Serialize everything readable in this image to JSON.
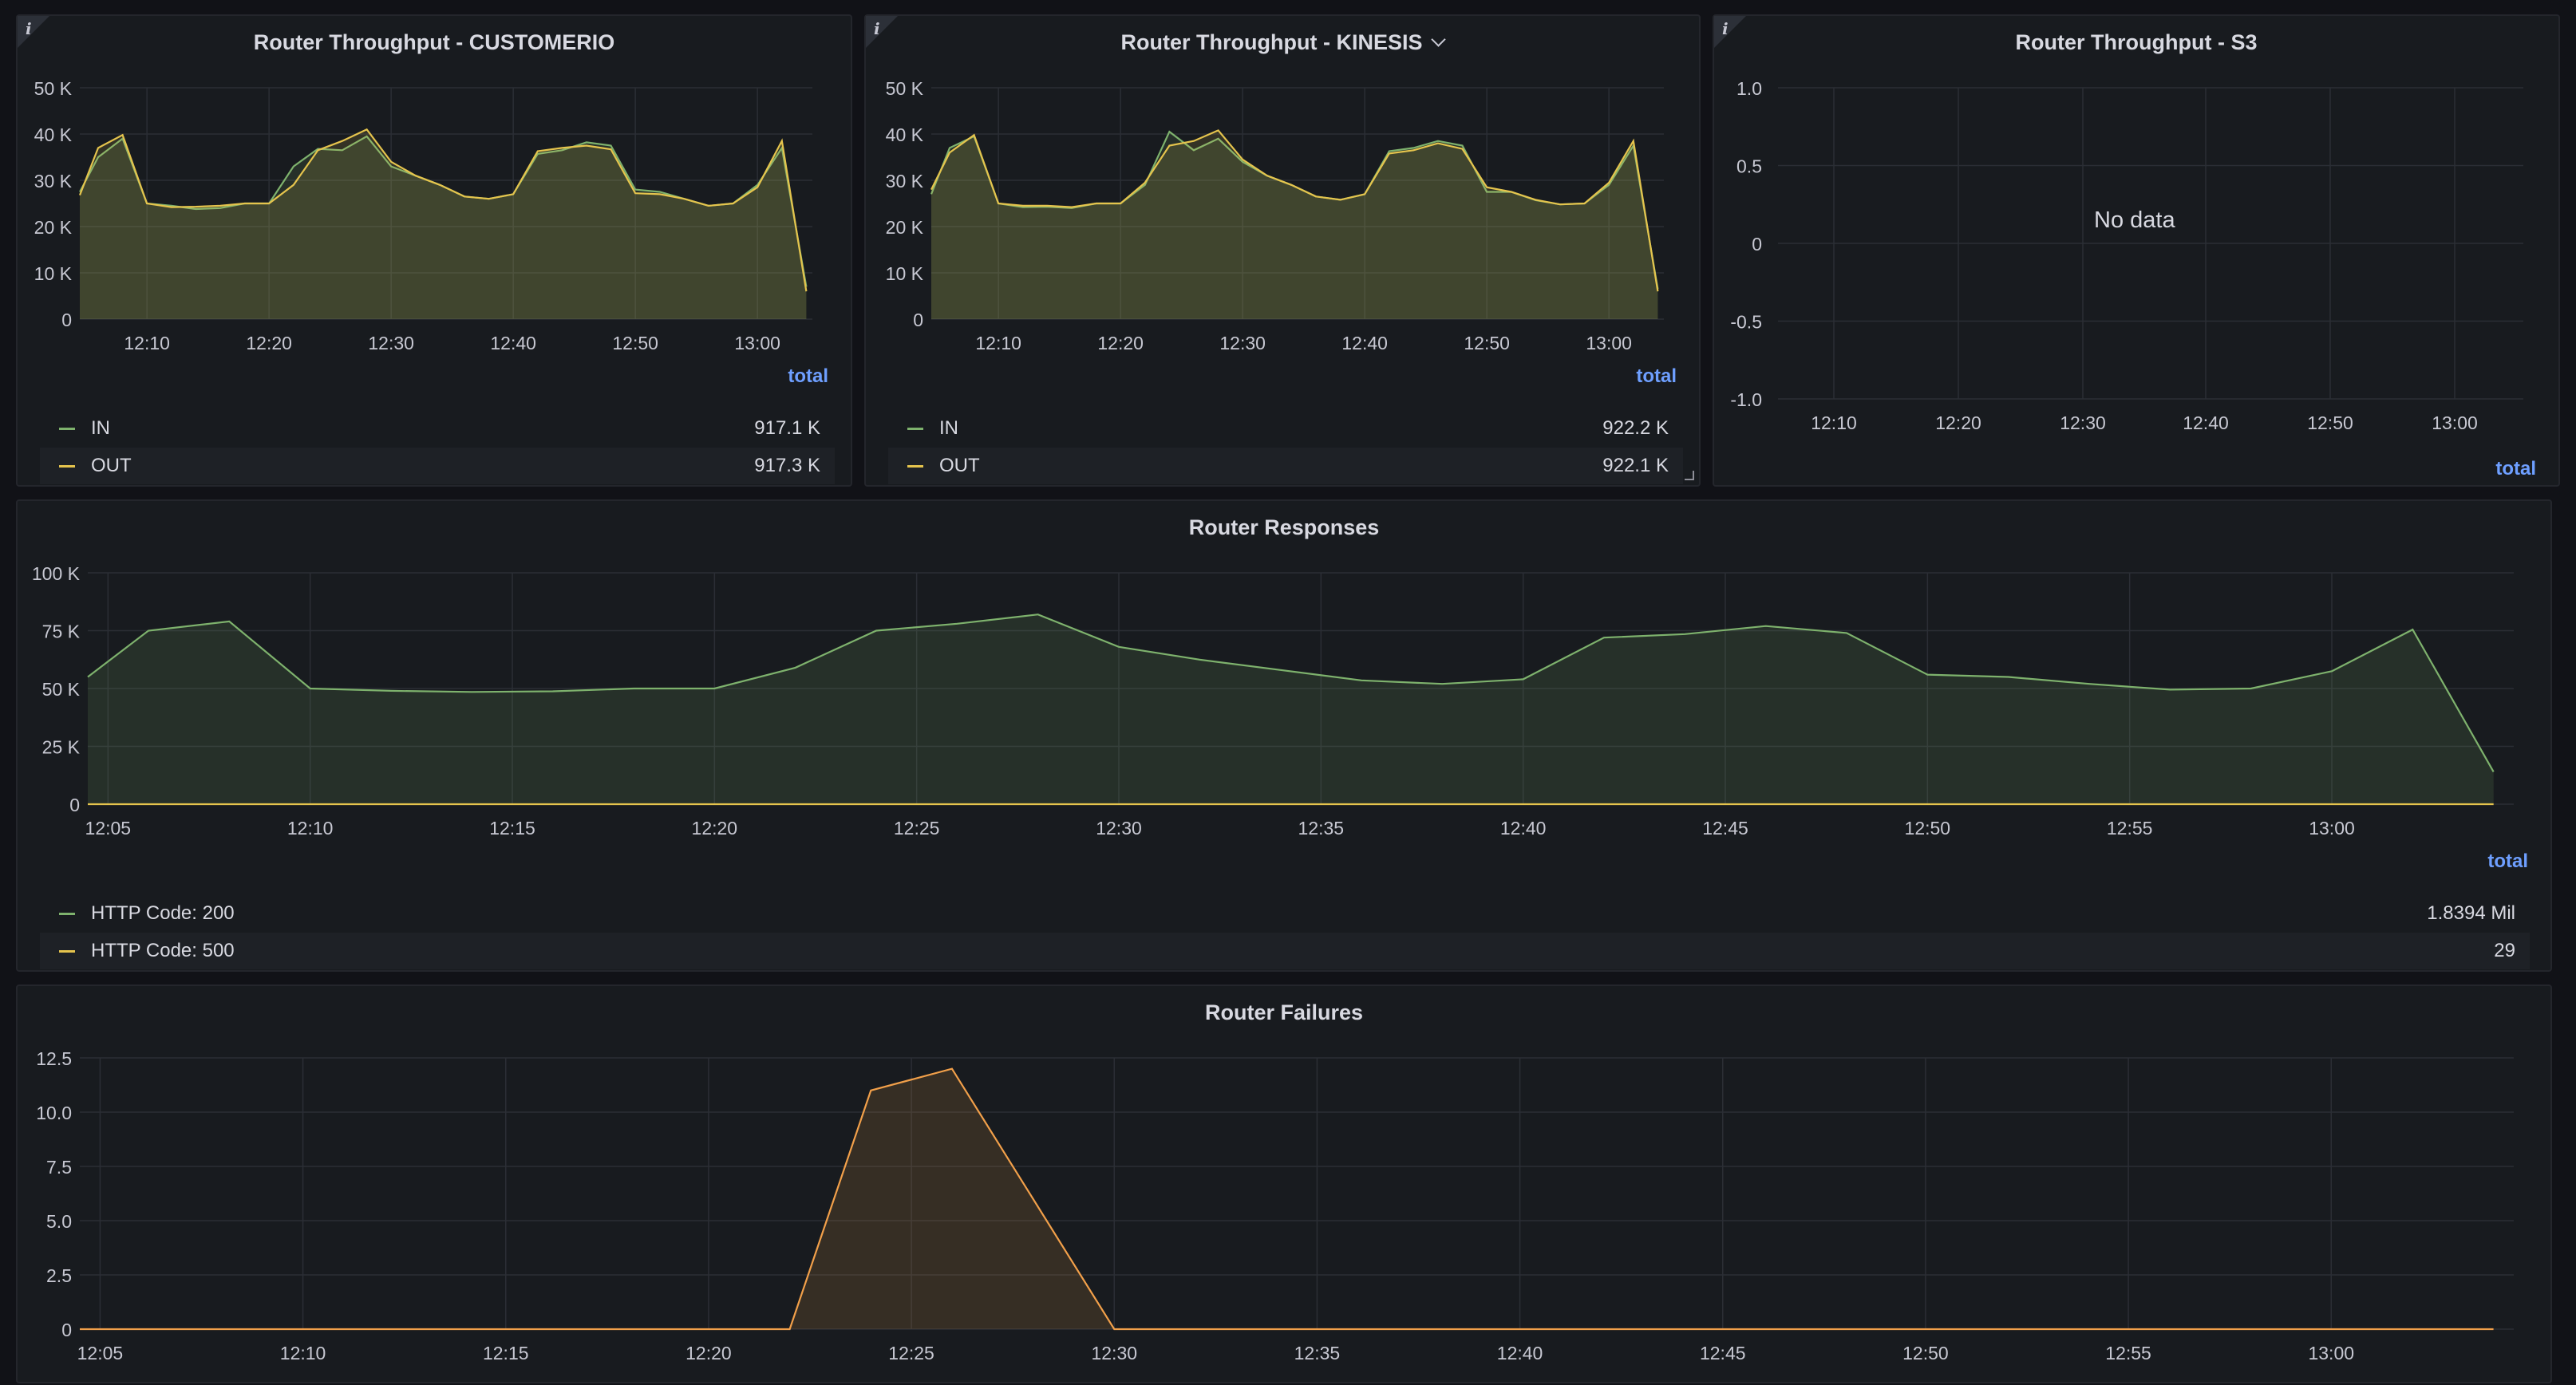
{
  "colors": {
    "green": "#7eb26d",
    "yellow": "#e5c44d",
    "orange": "#f2a04a",
    "grid": "#2b2e35",
    "axis_text": "#c7c8d2",
    "legend_total": "#6e9fff"
  },
  "icons": {
    "info": "info-icon",
    "chevron": "chevron-down-icon",
    "resize": "resize-handle-icon"
  },
  "panels": {
    "customerio": {
      "title": "Router Throughput - CUSTOMERIO",
      "info_glyph": "i",
      "legend_header": "total",
      "legend": [
        {
          "name": "IN",
          "total": "917.1 K"
        },
        {
          "name": "OUT",
          "total": "917.3 K"
        }
      ]
    },
    "kinesis": {
      "title": "Router Throughput - KINESIS",
      "info_glyph": "i",
      "legend_header": "total",
      "legend": [
        {
          "name": "IN",
          "total": "922.2 K"
        },
        {
          "name": "OUT",
          "total": "922.1 K"
        }
      ]
    },
    "s3": {
      "title": "Router Throughput - S3",
      "info_glyph": "i",
      "no_data": "No data",
      "legend_header": "total"
    },
    "responses": {
      "title": "Router Responses",
      "legend_header": "total",
      "legend": [
        {
          "name": "HTTP Code: 200",
          "total": "1.8394 Mil"
        },
        {
          "name": "HTTP Code: 500",
          "total": "29"
        }
      ]
    },
    "failures": {
      "title": "Router Failures"
    }
  },
  "chart_data": [
    {
      "id": "customerio",
      "type": "area",
      "title": "Router Throughput - CUSTOMERIO",
      "x_unit": "minutes",
      "xlim": [
        "12:04:30",
        "13:04:30"
      ],
      "x_ticks": [
        "12:10",
        "12:20",
        "12:30",
        "12:40",
        "12:50",
        "13:00"
      ],
      "y_ticks": [
        "0",
        "10 K",
        "20 K",
        "30 K",
        "40 K",
        "50 K"
      ],
      "ylim": [
        0,
        50000
      ],
      "grid": true,
      "legend": "bottom",
      "x": [
        "12:04:30",
        "12:06",
        "12:08",
        "12:10",
        "12:12",
        "12:14",
        "12:16",
        "12:18",
        "12:20",
        "12:22",
        "12:24",
        "12:26",
        "12:28",
        "12:30",
        "12:32",
        "12:34",
        "12:36",
        "12:38",
        "12:40",
        "12:42",
        "12:44",
        "12:46",
        "12:48",
        "12:50",
        "12:52",
        "12:54",
        "12:56",
        "12:58",
        "13:00",
        "13:02",
        "13:04"
      ],
      "series": [
        {
          "name": "IN",
          "color": "#7eb26d",
          "values": [
            27500,
            35000,
            39000,
            25000,
            24500,
            23800,
            24000,
            25000,
            25000,
            33000,
            36800,
            36500,
            39500,
            33000,
            31000,
            29000,
            26500,
            26000,
            27000,
            35700,
            36500,
            38200,
            37500,
            28000,
            27500,
            26000,
            24500,
            25000,
            29000,
            37000,
            7000
          ]
        },
        {
          "name": "OUT",
          "color": "#e5c44d",
          "values": [
            26800,
            37000,
            39800,
            25000,
            24200,
            24300,
            24500,
            25000,
            25000,
            29000,
            36500,
            38500,
            41000,
            34000,
            31000,
            29000,
            26500,
            26000,
            27000,
            36300,
            37000,
            37500,
            36700,
            27200,
            27000,
            26000,
            24500,
            25000,
            28500,
            38500,
            6000
          ]
        }
      ]
    },
    {
      "id": "kinesis",
      "type": "area",
      "title": "Router Throughput - KINESIS",
      "x_unit": "minutes",
      "xlim": [
        "12:04:30",
        "13:04:30"
      ],
      "x_ticks": [
        "12:10",
        "12:20",
        "12:30",
        "12:40",
        "12:50",
        "13:00"
      ],
      "y_ticks": [
        "0",
        "10 K",
        "20 K",
        "30 K",
        "40 K",
        "50 K"
      ],
      "ylim": [
        0,
        50000
      ],
      "grid": true,
      "legend": "bottom",
      "x": [
        "12:04:30",
        "12:06",
        "12:08",
        "12:10",
        "12:12",
        "12:14",
        "12:16",
        "12:18",
        "12:20",
        "12:22",
        "12:24",
        "12:26",
        "12:28",
        "12:30",
        "12:32",
        "12:34",
        "12:36",
        "12:38",
        "12:40",
        "12:42",
        "12:44",
        "12:46",
        "12:48",
        "12:50",
        "12:52",
        "12:54",
        "12:56",
        "12:58",
        "13:00",
        "13:02",
        "13:04"
      ],
      "series": [
        {
          "name": "IN",
          "color": "#7eb26d",
          "values": [
            27000,
            37000,
            39500,
            25000,
            24200,
            24300,
            24000,
            25000,
            25000,
            29000,
            40500,
            36500,
            39000,
            34000,
            31000,
            29000,
            26500,
            25800,
            27000,
            36300,
            37000,
            38500,
            37500,
            27500,
            27500,
            25700,
            24800,
            25000,
            29000,
            37500,
            6500
          ]
        },
        {
          "name": "OUT",
          "color": "#e5c44d",
          "values": [
            28000,
            36000,
            39800,
            25000,
            24500,
            24500,
            24200,
            25000,
            25000,
            29500,
            37500,
            38500,
            40800,
            34500,
            31000,
            29000,
            26500,
            25800,
            27000,
            35800,
            36500,
            38000,
            36800,
            28500,
            27500,
            25800,
            24800,
            25000,
            29500,
            38500,
            6000
          ]
        }
      ]
    },
    {
      "id": "s3",
      "type": "line",
      "title": "Router Throughput - S3",
      "x_ticks": [
        "12:10",
        "12:20",
        "12:30",
        "12:40",
        "12:50",
        "13:00"
      ],
      "y_ticks": [
        "-1.0",
        "-0.5",
        "0",
        "0.5",
        "1.0"
      ],
      "ylim": [
        -1,
        1
      ],
      "grid": true,
      "series": []
    },
    {
      "id": "responses",
      "type": "area",
      "title": "Router Responses",
      "x_unit": "minutes",
      "xlim": [
        "12:04:30",
        "13:04:30"
      ],
      "x_ticks": [
        "12:05",
        "12:10",
        "12:15",
        "12:20",
        "12:25",
        "12:30",
        "12:35",
        "12:40",
        "12:45",
        "12:50",
        "12:55",
        "13:00"
      ],
      "y_ticks": [
        "0",
        "25 K",
        "50 K",
        "75 K",
        "100 K"
      ],
      "ylim": [
        0,
        100000
      ],
      "grid": true,
      "legend": "bottom",
      "x": [
        "12:04:30",
        "12:06",
        "12:08",
        "12:10",
        "12:12",
        "12:14",
        "12:16",
        "12:18",
        "12:20",
        "12:22",
        "12:24",
        "12:26",
        "12:28",
        "12:30",
        "12:32",
        "12:34",
        "12:36",
        "12:38",
        "12:40",
        "12:42",
        "12:44",
        "12:46",
        "12:48",
        "12:50",
        "12:52",
        "12:54",
        "12:56",
        "12:58",
        "13:00",
        "13:02",
        "13:04"
      ],
      "series": [
        {
          "name": "HTTP Code: 200",
          "color": "#7eb26d",
          "values": [
            55000,
            75000,
            79000,
            50000,
            49000,
            48500,
            48800,
            50000,
            50000,
            59000,
            75000,
            78000,
            82000,
            68000,
            62500,
            58000,
            53500,
            52000,
            54000,
            72000,
            73500,
            77000,
            74000,
            56000,
            55000,
            52000,
            49500,
            50000,
            57500,
            75500,
            14000
          ]
        },
        {
          "name": "HTTP Code: 500",
          "color": "#e5c44d",
          "values": [
            0,
            0,
            0,
            0,
            0,
            0,
            0,
            0,
            0,
            0,
            0,
            0,
            0,
            0,
            0,
            0,
            0,
            0,
            0,
            0,
            0,
            0,
            0,
            0,
            0,
            0,
            0,
            0,
            0,
            0,
            0
          ]
        }
      ]
    },
    {
      "id": "failures",
      "type": "area",
      "title": "Router Failures",
      "x_unit": "minutes",
      "xlim": [
        "12:04:30",
        "13:04:30"
      ],
      "x_ticks": [
        "12:05",
        "12:10",
        "12:15",
        "12:20",
        "12:25",
        "12:30",
        "12:35",
        "12:40",
        "12:45",
        "12:50",
        "12:55",
        "13:00"
      ],
      "y_ticks": [
        "0",
        "2.5",
        "5.0",
        "7.5",
        "10.0",
        "12.5"
      ],
      "ylim": [
        0,
        12.5
      ],
      "grid": true,
      "x": [
        "12:04:30",
        "12:22",
        "12:24",
        "12:26",
        "12:30",
        "13:04"
      ],
      "series": [
        {
          "color": "#f2a04a",
          "values": [
            0,
            0,
            11,
            12,
            0,
            0
          ]
        }
      ]
    }
  ]
}
